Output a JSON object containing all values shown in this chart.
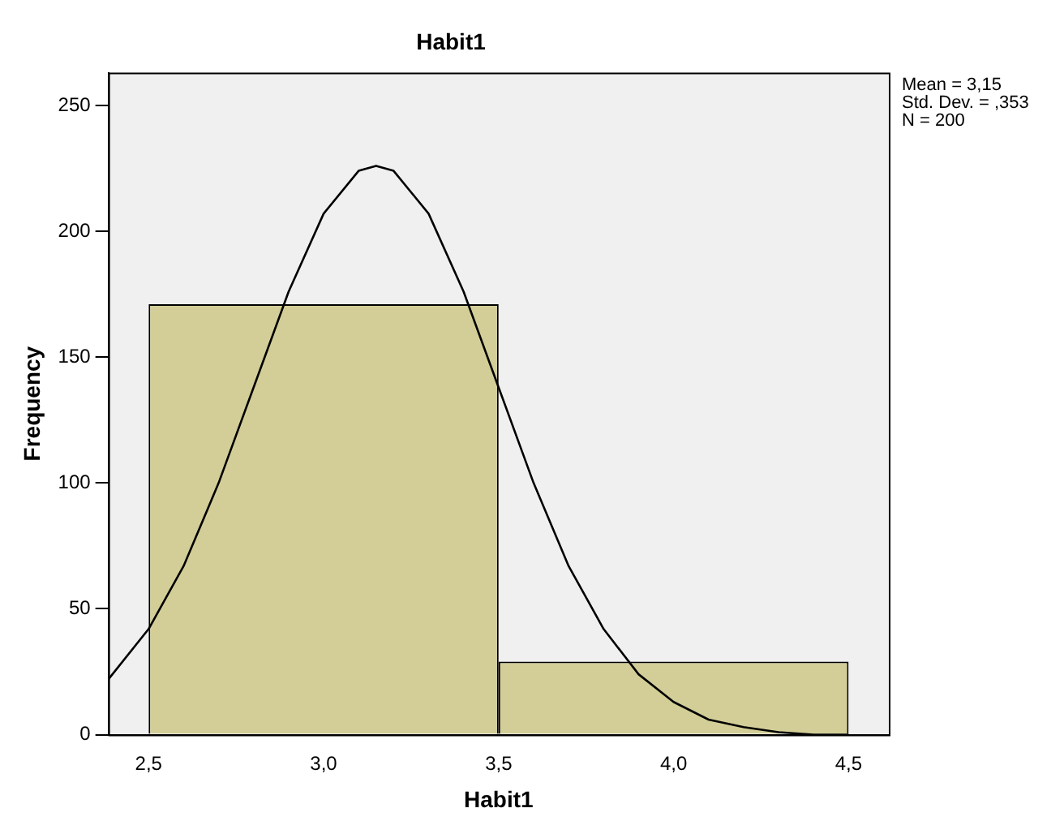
{
  "chart_data": {
    "type": "histogram",
    "title": "Habit1",
    "xlabel": "Habit1",
    "ylabel": "Frequency",
    "bins": [
      2.5,
      3.5,
      4.5
    ],
    "values": [
      171,
      29
    ],
    "color": "#d3ce97",
    "series": [
      {
        "type": "line",
        "color": "#000000",
        "x": [
          2.385,
          2.5,
          2.6,
          2.7,
          2.8,
          2.9,
          3.0,
          3.1,
          3.15,
          3.2,
          3.3,
          3.4,
          3.5,
          3.6,
          3.7,
          3.8,
          3.9,
          4.0,
          4.1,
          4.2,
          4.3,
          4.4,
          4.5
        ],
        "values": [
          22,
          42,
          67,
          100,
          138,
          176,
          207,
          224,
          226,
          224,
          207,
          176,
          138,
          100,
          67,
          42,
          24,
          13,
          6,
          3,
          1,
          0,
          0
        ]
      }
    ],
    "annotations": [
      "Mean = 3,15",
      "Std. Dev. = ,353",
      "N = 200"
    ],
    "xlim": [
      2.385,
      4.615
    ],
    "xticks": [
      {
        "value": 2.5,
        "label": "2,5"
      },
      {
        "value": 3.0,
        "label": "3,0"
      },
      {
        "value": 3.5,
        "label": "3,5"
      },
      {
        "value": 4.0,
        "label": "4,0"
      },
      {
        "value": 4.5,
        "label": "4,5"
      }
    ],
    "ylim": [
      0,
      263
    ],
    "yticks": [
      0,
      50,
      100,
      150,
      200,
      250
    ],
    "grid": false,
    "legend": false
  }
}
